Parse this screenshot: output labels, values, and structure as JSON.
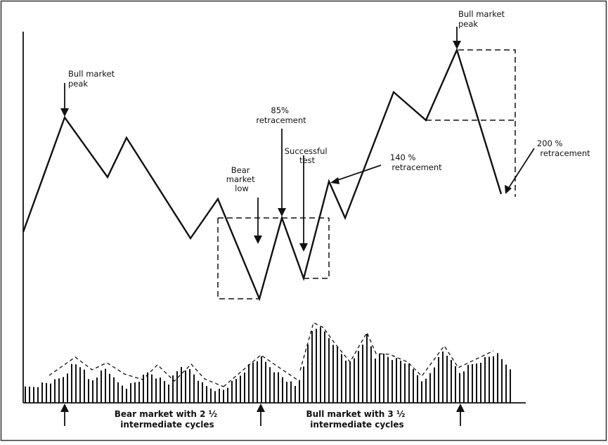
{
  "annotations": {
    "bull_peak_1": [
      "Bull market",
      "peak"
    ],
    "bull_peak_2": [
      "Bull market",
      "peak"
    ],
    "pct85": [
      "85%",
      "retracement"
    ],
    "bear_low": [
      "Bear",
      "market",
      "low"
    ],
    "successful_test": [
      "Successful",
      "test"
    ],
    "pct140": [
      "140 %",
      "retracement"
    ],
    "pct200": [
      "200 %",
      "retracement"
    ]
  },
  "captions": {
    "bear": [
      "Bear market with 2 ½",
      "intermediate cycles"
    ],
    "bull": [
      "Bull market with 3 ½",
      "intermediate cycles"
    ]
  },
  "colors": {
    "ink": "#111111",
    "background": "#ffffff"
  }
}
